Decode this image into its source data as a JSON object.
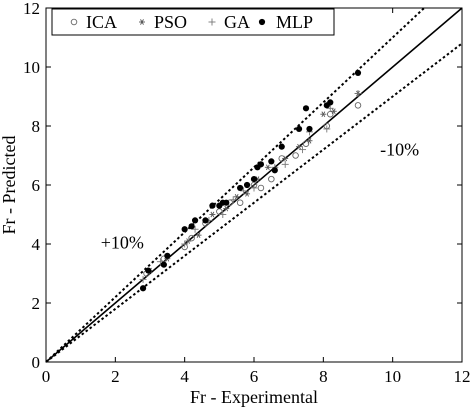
{
  "chart_data": {
    "type": "scatter",
    "xlabel": "Fr - Experimental",
    "ylabel": "Fr - Predicted",
    "xlim": [
      0,
      12
    ],
    "ylim": [
      0,
      12
    ],
    "x_ticks": [
      0,
      2,
      4,
      6,
      8,
      10,
      12
    ],
    "y_ticks": [
      0,
      2,
      4,
      6,
      8,
      10,
      12
    ],
    "grid": false,
    "legend_position": "top-left",
    "annotations": [
      {
        "text": "+10%",
        "x": 2.2,
        "y": 3.85
      },
      {
        "text": "-10%",
        "x": 10.2,
        "y": 7.0
      }
    ],
    "reference_lines": [
      {
        "label": "y = x",
        "slope": 1.0,
        "style": "solid"
      },
      {
        "label": "+10%",
        "slope": 1.1,
        "style": "dotted"
      },
      {
        "label": "-10%",
        "slope": 0.9,
        "style": "dotted"
      }
    ],
    "series": [
      {
        "name": "ICA",
        "marker": "open-circle",
        "points": [
          [
            2.9,
            3.0
          ],
          [
            3.4,
            3.5
          ],
          [
            4.0,
            3.9
          ],
          [
            4.2,
            4.2
          ],
          [
            4.6,
            4.7
          ],
          [
            5.0,
            5.1
          ],
          [
            5.3,
            5.4
          ],
          [
            5.6,
            5.4
          ],
          [
            6.0,
            6.0
          ],
          [
            6.2,
            5.9
          ],
          [
            6.5,
            6.2
          ],
          [
            6.8,
            6.9
          ],
          [
            7.2,
            7.0
          ],
          [
            7.5,
            7.4
          ],
          [
            8.1,
            8.0
          ],
          [
            8.2,
            8.4
          ],
          [
            9.0,
            8.7
          ]
        ]
      },
      {
        "name": "PSO",
        "marker": "asterisk",
        "points": [
          [
            3.0,
            3.1
          ],
          [
            3.5,
            3.5
          ],
          [
            4.1,
            4.1
          ],
          [
            4.4,
            4.3
          ],
          [
            4.8,
            5.0
          ],
          [
            5.2,
            5.2
          ],
          [
            5.5,
            5.6
          ],
          [
            5.8,
            5.7
          ],
          [
            6.1,
            6.2
          ],
          [
            6.4,
            6.6
          ],
          [
            6.9,
            6.9
          ],
          [
            7.3,
            7.3
          ],
          [
            7.6,
            7.5
          ],
          [
            8.0,
            8.4
          ],
          [
            8.3,
            8.5
          ],
          [
            9.0,
            9.1
          ]
        ]
      },
      {
        "name": "GA",
        "marker": "plus",
        "points": [
          [
            2.8,
            2.8
          ],
          [
            3.3,
            3.4
          ],
          [
            4.0,
            4.0
          ],
          [
            4.3,
            4.5
          ],
          [
            4.7,
            4.8
          ],
          [
            5.1,
            5.0
          ],
          [
            5.4,
            5.5
          ],
          [
            5.7,
            5.8
          ],
          [
            6.0,
            5.9
          ],
          [
            6.6,
            6.6
          ],
          [
            6.9,
            6.7
          ],
          [
            7.4,
            7.2
          ],
          [
            7.6,
            7.8
          ],
          [
            8.1,
            7.9
          ],
          [
            8.2,
            8.6
          ],
          [
            9.0,
            9.1
          ]
        ]
      },
      {
        "name": "MLP",
        "marker": "filled-circle",
        "points": [
          [
            2.8,
            2.5
          ],
          [
            2.95,
            3.1
          ],
          [
            3.4,
            3.3
          ],
          [
            3.5,
            3.6
          ],
          [
            4.0,
            4.5
          ],
          [
            4.2,
            4.6
          ],
          [
            4.3,
            4.8
          ],
          [
            4.6,
            4.8
          ],
          [
            4.8,
            5.3
          ],
          [
            5.0,
            5.3
          ],
          [
            5.2,
            5.4
          ],
          [
            5.6,
            5.9
          ],
          [
            5.8,
            6.0
          ],
          [
            6.0,
            6.2
          ],
          [
            6.1,
            6.6
          ],
          [
            6.2,
            6.7
          ],
          [
            6.5,
            6.8
          ],
          [
            6.8,
            7.3
          ],
          [
            7.3,
            7.9
          ],
          [
            7.5,
            8.6
          ],
          [
            7.6,
            7.9
          ],
          [
            8.1,
            8.7
          ],
          [
            8.2,
            8.8
          ],
          [
            9.0,
            9.8
          ],
          [
            5.1,
            5.4
          ],
          [
            6.6,
            6.5
          ]
        ]
      }
    ]
  }
}
